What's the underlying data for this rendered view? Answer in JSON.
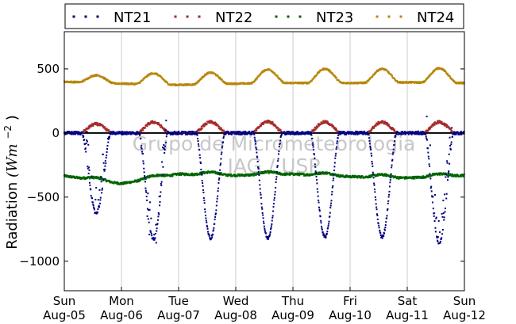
{
  "chart_data": {
    "type": "scatter",
    "title": "",
    "ylabel": "Radiation",
    "ylabel_unit": "(Wm",
    "ylabel_unit_sup": "−2",
    "ylabel_unit_close": ")",
    "xlabel": "",
    "ylim": [
      -1230,
      790
    ],
    "xlim": [
      0,
      7
    ],
    "grid": "vertical",
    "legend_position": "top",
    "yticks": [
      {
        "value": 500,
        "label": "500"
      },
      {
        "value": 0,
        "label": "0"
      },
      {
        "value": -500,
        "label": "−500"
      },
      {
        "value": -1000,
        "label": "−1000"
      }
    ],
    "xticks": [
      {
        "value": 0,
        "day": "Sun",
        "date": "Aug-05"
      },
      {
        "value": 1,
        "day": "Mon",
        "date": "Aug-06"
      },
      {
        "value": 2,
        "day": "Tue",
        "date": "Aug-07"
      },
      {
        "value": 3,
        "day": "Wed",
        "date": "Aug-08"
      },
      {
        "value": 4,
        "day": "Thu",
        "date": "Aug-09"
      },
      {
        "value": 5,
        "day": "Fri",
        "date": "Aug-10"
      },
      {
        "value": 6,
        "day": "Sat",
        "date": "Aug-11"
      },
      {
        "value": 7,
        "day": "Sun",
        "date": "Aug-12"
      }
    ],
    "series": [
      {
        "name": "NT21",
        "color": "#000080",
        "baseline": 0,
        "peaks": [
          -620,
          -830,
          -820,
          -820,
          -810,
          -810,
          -860
        ],
        "peak_day_offset": 0.56,
        "half_width": 0.25
      },
      {
        "name": "NT22",
        "color": "#a52a2a",
        "baseline": 0,
        "peaks": [
          70,
          85,
          85,
          90,
          85,
          85,
          85
        ],
        "peak_day_offset": 0.56,
        "half_width": 0.28
      },
      {
        "name": "NT23",
        "color": "#006400",
        "baseline": -330,
        "night_levels": [
          -335,
          -395,
          -320,
          -330,
          -320,
          -340,
          -350,
          -330
        ],
        "peak_day_offset": 0.56
      },
      {
        "name": "NT24",
        "color": "#b8860b",
        "baseline": 390,
        "night_levels": [
          400,
          385,
          375,
          385,
          390,
          390,
          395,
          390
        ],
        "peaks": [
          450,
          465,
          470,
          495,
          500,
          500,
          505
        ],
        "peak_day_offset": 0.56
      }
    ],
    "zero_line": 0,
    "watermark": [
      "Grupo de Micrometeorologia",
      "IAG / USP"
    ]
  }
}
